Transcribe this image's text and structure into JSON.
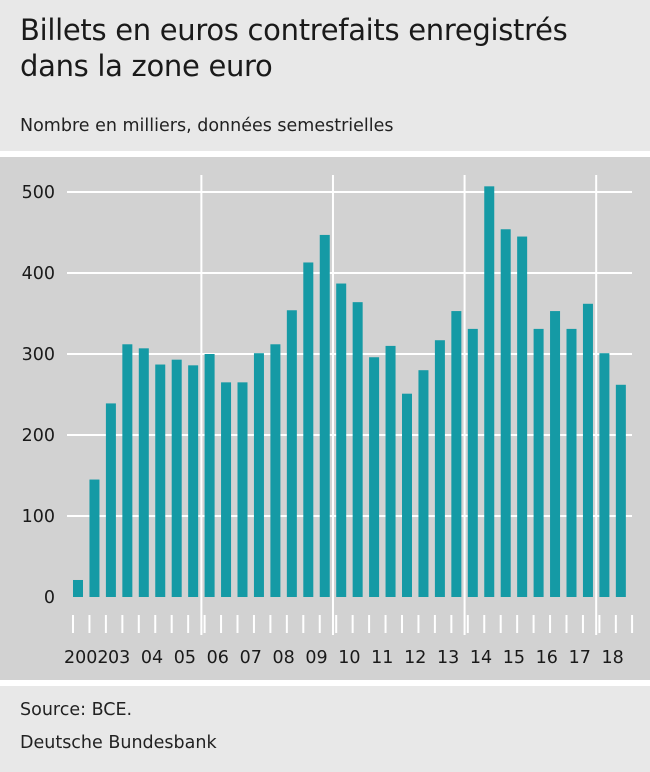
{
  "header": {
    "title": "Billets en euros contrefaits enregistrés dans la zone euro",
    "subtitle": "Nombre en milliers, données semestrielles"
  },
  "footer": {
    "source": "Source: BCE.",
    "publisher": "Deutsche Bundesbank"
  },
  "colors": {
    "bar": "#159aa5",
    "plot_background": "#d2d2d2",
    "grid": "#ffffff"
  },
  "chart_data": {
    "type": "bar",
    "title": "Billets en euros contrefaits enregistrés dans la zone euro",
    "subtitle": "Nombre en milliers, données semestrielles",
    "xlabel": "",
    "ylabel": "",
    "ylim": [
      0,
      525
    ],
    "yticks": [
      0,
      100,
      200,
      300,
      400,
      500
    ],
    "grid": true,
    "year_labels": [
      "2002",
      "03",
      "04",
      "05",
      "06",
      "07",
      "08",
      "09",
      "10",
      "11",
      "12",
      "13",
      "14",
      "15",
      "16",
      "17",
      "18"
    ],
    "categories": [
      "2002 H1",
      "2002 H2",
      "2003 H1",
      "2003 H2",
      "2004 H1",
      "2004 H2",
      "2005 H1",
      "2005 H2",
      "2006 H1",
      "2006 H2",
      "2007 H1",
      "2007 H2",
      "2008 H1",
      "2008 H2",
      "2009 H1",
      "2009 H2",
      "2010 H1",
      "2010 H2",
      "2011 H1",
      "2011 H2",
      "2012 H1",
      "2012 H2",
      "2013 H1",
      "2013 H2",
      "2014 H1",
      "2014 H2",
      "2015 H1",
      "2015 H2",
      "2016 H1",
      "2016 H2",
      "2017 H1",
      "2017 H2",
      "2018 H1",
      "2018 H2"
    ],
    "values": [
      21,
      145,
      239,
      312,
      307,
      287,
      293,
      286,
      300,
      265,
      265,
      301,
      312,
      354,
      413,
      447,
      387,
      364,
      296,
      310,
      251,
      280,
      317,
      353,
      331,
      507,
      454,
      445,
      331,
      353,
      331,
      362,
      301,
      262
    ],
    "year_separators_after": [
      "2005",
      "2009",
      "2013",
      "2017"
    ]
  }
}
